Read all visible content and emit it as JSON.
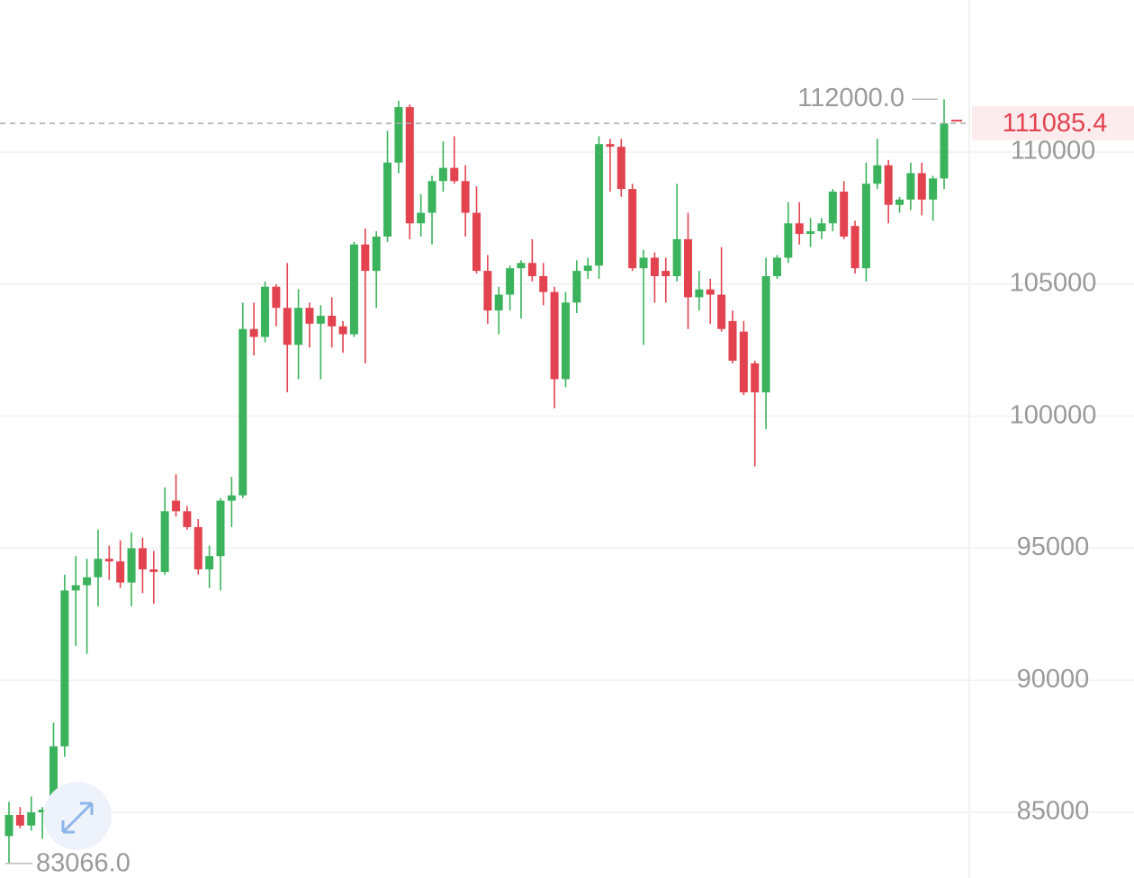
{
  "chart_data": {
    "type": "candlestick",
    "ylim": [
      82514,
      115756
    ],
    "yticks": [
      85000,
      90000,
      95000,
      100000,
      105000,
      110000
    ],
    "grid": true,
    "up_color": "#3bb35c",
    "down_color": "#e2434f",
    "open": [
      84100,
      84900,
      84500,
      85000,
      85200,
      87500,
      93400,
      93600,
      93900,
      94600,
      94500,
      93700,
      95000,
      94200,
      94100,
      96800,
      96400,
      95800,
      94200,
      94700,
      96800,
      97000,
      103300,
      103000,
      104900,
      104100,
      102700,
      104100,
      103500,
      103800,
      103400,
      103100,
      106500,
      105500,
      106800,
      109600,
      111700,
      107300,
      107700,
      108900,
      109400,
      108900,
      107700,
      105500,
      104000,
      104600,
      105600,
      105800,
      105300,
      104700,
      101400,
      104300,
      105500,
      105700,
      110300,
      110200,
      108600,
      105600,
      106000,
      105500,
      105300,
      106700,
      104500,
      104800,
      104600,
      103600,
      103200,
      102000,
      100900,
      105300,
      106000,
      107300,
      106900,
      107000,
      107300,
      108500,
      107200,
      105600,
      108800,
      109500,
      108000,
      108200,
      109200,
      108200,
      109000
    ],
    "high": [
      85400,
      85200,
      85600,
      85200,
      88400,
      94000,
      94700,
      94600,
      95700,
      95100,
      95300,
      95600,
      95400,
      94900,
      97300,
      97800,
      96600,
      96100,
      95100,
      96900,
      97700,
      104300,
      104300,
      105100,
      105000,
      105800,
      104800,
      104300,
      104200,
      104500,
      103600,
      106600,
      107100,
      107000,
      110800,
      111940,
      111800,
      108400,
      109100,
      110400,
      110600,
      109500,
      108700,
      106100,
      104900,
      105700,
      105900,
      106700,
      105800,
      104900,
      104700,
      105900,
      106000,
      110600,
      110500,
      110500,
      108800,
      106300,
      106200,
      106000,
      108800,
      107700,
      105500,
      105200,
      106400,
      104000,
      103600,
      102100,
      106000,
      106100,
      108100,
      108100,
      107500,
      107500,
      108600,
      108900,
      107400,
      109600,
      110500,
      109700,
      108300,
      109600,
      109600,
      109100,
      112000
    ],
    "low": [
      83066,
      84400,
      84300,
      84000,
      85000,
      87100,
      91300,
      91000,
      92800,
      93800,
      93500,
      92800,
      93300,
      92900,
      94000,
      96200,
      95700,
      94000,
      93500,
      93400,
      95800,
      96900,
      102300,
      102800,
      103400,
      100900,
      101400,
      102600,
      101400,
      102600,
      102400,
      103000,
      102000,
      104100,
      106600,
      109200,
      106700,
      106800,
      106500,
      108500,
      108800,
      106800,
      105400,
      103500,
      103100,
      104000,
      103700,
      105100,
      104200,
      100300,
      101100,
      103900,
      105200,
      105200,
      108500,
      108300,
      105500,
      102700,
      104300,
      104300,
      105100,
      103300,
      104000,
      103500,
      103200,
      102000,
      100800,
      98100,
      99500,
      105200,
      105800,
      106500,
      106400,
      106700,
      107000,
      106700,
      105400,
      105100,
      108600,
      107300,
      107700,
      107800,
      107600,
      107400,
      108600
    ],
    "close": [
      84900,
      84500,
      85000,
      85100,
      87500,
      93400,
      93600,
      93900,
      94600,
      94500,
      93700,
      95000,
      94200,
      94100,
      96400,
      96400,
      95800,
      94200,
      94700,
      96800,
      97000,
      103300,
      103000,
      104900,
      104100,
      102700,
      104100,
      103500,
      103800,
      103400,
      103100,
      106500,
      105500,
      106800,
      109600,
      111700,
      107300,
      107700,
      108900,
      109400,
      108900,
      107700,
      105500,
      104000,
      104600,
      105600,
      105800,
      105300,
      104700,
      101400,
      104300,
      105500,
      105700,
      110300,
      110200,
      108600,
      105600,
      106000,
      105300,
      105300,
      106700,
      104500,
      104800,
      104600,
      103300,
      102100,
      100900,
      100900,
      105300,
      106000,
      107300,
      106900,
      107000,
      107300,
      108500,
      106800,
      105600,
      108800,
      109500,
      108000,
      108200,
      109200,
      108200,
      109000,
      111085.4
    ],
    "max_label": {
      "value": 112000,
      "label": "112000.0"
    },
    "min_label": {
      "value": 83066,
      "label": "83066.0"
    }
  }
}
